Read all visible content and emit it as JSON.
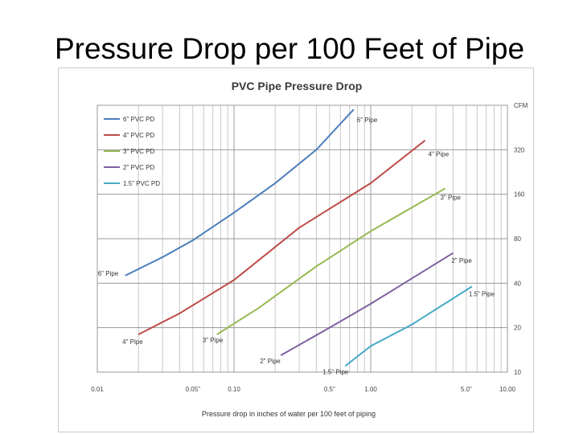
{
  "slide": {
    "title": "Pressure Drop per 100 Feet of Pipe"
  },
  "chart_data": {
    "type": "line",
    "title": "PVC Pipe Pressure Drop",
    "xlabel": "Pressure drop in inches of water per 100 feet of piping",
    "ylabel": "CFM",
    "x_scale": "log",
    "y_scale": "log",
    "xlim": [
      0.01,
      10
    ],
    "ylim": [
      10,
      640
    ],
    "x_ticks": [
      "0.01",
      "0.05\"",
      "0.10",
      "0.5\"",
      "1.00",
      "5.0\"",
      "10.00"
    ],
    "x_tick_values": [
      0.01,
      0.05,
      0.1,
      0.5,
      1,
      5,
      10
    ],
    "y_ticks": [
      "CFM",
      "320",
      "160",
      "80",
      "40",
      "20",
      "10"
    ],
    "y_tick_values": [
      640,
      320,
      160,
      80,
      40,
      20,
      10
    ],
    "grid": true,
    "legend_position": "top-left",
    "series": [
      {
        "name": "6\" PVC PD",
        "color": "#4a7ebb",
        "x": [
          0.016,
          0.03,
          0.05,
          0.1,
          0.2,
          0.4,
          0.75
        ],
        "y": [
          45,
          60,
          78,
          120,
          190,
          320,
          600
        ]
      },
      {
        "name": "4\" PVC PD",
        "color": "#be4b48",
        "x": [
          0.02,
          0.04,
          0.1,
          0.3,
          1.0,
          2.5
        ],
        "y": [
          18,
          25,
          42,
          95,
          190,
          370
        ]
      },
      {
        "name": "3\" PVC PD",
        "color": "#98b954",
        "x": [
          0.075,
          0.15,
          0.4,
          1.0,
          3.5
        ],
        "y": [
          18,
          27,
          52,
          90,
          175
        ]
      },
      {
        "name": "2\" PVC PD",
        "color": "#7d60a0",
        "x": [
          0.22,
          0.5,
          1.0,
          4.0
        ],
        "y": [
          13,
          20,
          29,
          64
        ]
      },
      {
        "name": "1.5\" PVC PD",
        "color": "#46aac5",
        "x": [
          0.65,
          1.0,
          2.0,
          5.5
        ],
        "y": [
          11,
          15,
          21,
          38
        ]
      }
    ],
    "annotations": [
      "6\" Pipe",
      "4\" Pipe",
      "3\" Pipe",
      "2\" Pipe",
      "1.5\" Pipe",
      "6\" Pipe",
      "4\" Pipe",
      "3\" Pipe",
      "2\" Pipe",
      "1.5\" Pipe"
    ]
  }
}
